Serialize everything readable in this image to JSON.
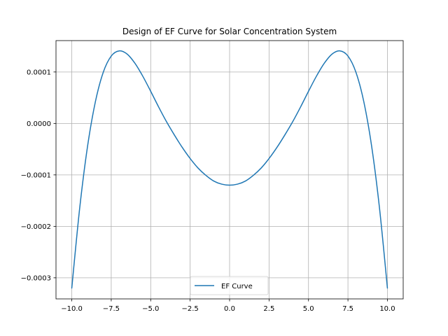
{
  "chart_data": {
    "type": "line",
    "title": "Design of EF Curve for Solar Concentration System",
    "xlabel": "",
    "ylabel": "",
    "xlim": [
      -11.0,
      11.0
    ],
    "ylim": [
      -0.000341,
      0.000161
    ],
    "x_ticks": [
      -10.0,
      -7.5,
      -5.0,
      -2.5,
      0.0,
      2.5,
      5.0,
      7.5,
      10.0
    ],
    "x_tick_labels": [
      "−10.0",
      "−7.5",
      "−5.0",
      "−2.5",
      "0.0",
      "2.5",
      "5.0",
      "7.5",
      "10.0"
    ],
    "y_ticks": [
      -0.0003,
      -0.0002,
      -0.0001,
      0.0,
      0.0001
    ],
    "y_tick_labels": [
      "−0.0003",
      "−0.0002",
      "−0.0001",
      "0.0000",
      "0.0001"
    ],
    "grid": true,
    "legend_position": "lower-center",
    "series": [
      {
        "name": "EF Curve",
        "color": "#1f77b4",
        "x": [
          -10.0,
          -9.5,
          -9.0,
          -8.5,
          -8.0,
          -7.5,
          -7.0,
          -6.5,
          -6.0,
          -5.5,
          -5.0,
          -4.5,
          -4.0,
          -3.5,
          -3.0,
          -2.5,
          -2.0,
          -1.5,
          -1.0,
          -0.5,
          0.0,
          0.5,
          1.0,
          1.5,
          2.0,
          2.5,
          3.0,
          3.5,
          4.0,
          4.5,
          5.0,
          5.5,
          6.0,
          6.5,
          7.0,
          7.5,
          8.0,
          8.5,
          9.0,
          9.5,
          10.0
        ],
        "y": [
          -0.00032,
          -0.000165,
          -4.43e-05,
          4.28e-05,
          9.99e-05,
          0.000131,
          0.000141,
          0.000135,
          0.000117,
          9.17e-05,
          6.25e-05,
          3.22e-05,
          3.49e-06,
          -2.24e-05,
          -4.66e-05,
          -6.82e-05,
          -8.67e-05,
          -0.000101,
          -0.000112,
          -0.000118,
          -0.00012,
          -0.000118,
          -0.000112,
          -0.000101,
          -8.67e-05,
          -6.82e-05,
          -4.66e-05,
          -2.24e-05,
          3.49e-06,
          3.22e-05,
          6.25e-05,
          9.17e-05,
          0.000117,
          0.000135,
          0.000141,
          0.000131,
          9.99e-05,
          4.28e-05,
          -4.43e-05,
          -0.000165,
          -0.00032
        ]
      }
    ]
  }
}
